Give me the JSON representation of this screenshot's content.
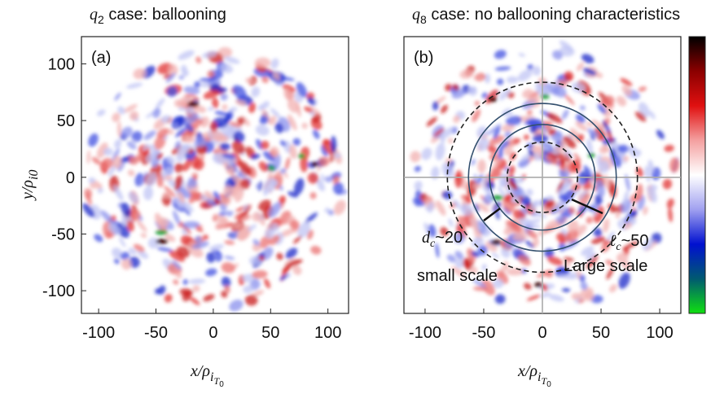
{
  "chart_data": [
    {
      "type": "heatmap",
      "panel_label": "(a)",
      "title": [
        "q",
        "2",
        " case: ballooning"
      ],
      "xlabel": [
        "x/ρ",
        "i",
        "T",
        "0"
      ],
      "ylabel": [
        "y/ρ",
        "i0"
      ],
      "xlim": [
        -115,
        118
      ],
      "ylim": [
        -120,
        124
      ],
      "xticks": [
        -100,
        -50,
        0,
        50,
        100
      ],
      "yticks": [
        -100,
        -50,
        0,
        50,
        100
      ]
    },
    {
      "type": "heatmap",
      "panel_label": "(b)",
      "title": [
        "q",
        "8",
        " case: no ballooning characteristics"
      ],
      "xlabel": [
        "x/ρ",
        "i",
        "T",
        "0"
      ],
      "xlim": [
        -118,
        118
      ],
      "ylim": [
        -120,
        124
      ],
      "xticks": [
        -100,
        -50,
        0,
        50,
        100
      ],
      "annotations": [
        {
          "parts": [
            "d",
            "c",
            "~20"
          ]
        },
        {
          "parts": [
            "ℓ",
            "c",
            "~50"
          ]
        },
        {
          "text": "small scale"
        },
        {
          "text": "Large scale"
        }
      ],
      "colormap": [
        "#000000",
        "#8b0000",
        "#e01010",
        "#f4a0a0",
        "#ffffff",
        "#a0a0f0",
        "#0010d0",
        "#005a70",
        "#10e010"
      ]
    }
  ]
}
